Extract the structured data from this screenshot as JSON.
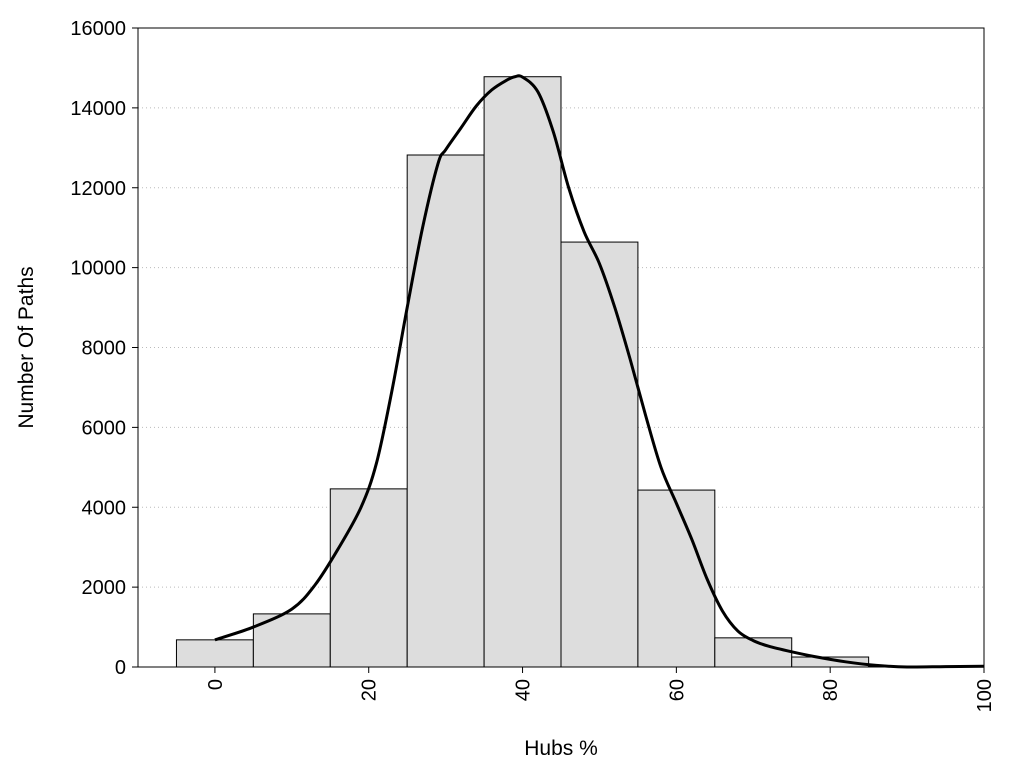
{
  "chart_data": {
    "type": "bar",
    "xlabel": "Hubs %",
    "ylabel": "Number Of Paths",
    "xlim": [
      -10,
      100
    ],
    "ylim": [
      0,
      16000
    ],
    "x_ticks": [
      "0",
      "20",
      "40",
      "60",
      "80",
      "100"
    ],
    "y_ticks": [
      "0",
      "2000",
      "4000",
      "6000",
      "8000",
      "10000",
      "12000",
      "14000",
      "16000"
    ],
    "grid": "horizontal dotted",
    "bar_color": "#dddddd",
    "bins": [
      {
        "center": 0,
        "value": 680
      },
      {
        "center": 10,
        "value": 1330
      },
      {
        "center": 20,
        "value": 4460
      },
      {
        "center": 30,
        "value": 12820
      },
      {
        "center": 40,
        "value": 14780
      },
      {
        "center": 50,
        "value": 10640
      },
      {
        "center": 60,
        "value": 4430
      },
      {
        "center": 70,
        "value": 730
      },
      {
        "center": 80,
        "value": 250
      },
      {
        "center": 90,
        "value": 20
      },
      {
        "center": 100,
        "value": 5
      }
    ],
    "bin_width": 10,
    "curve": {
      "x": [
        0,
        5,
        10,
        13,
        16,
        19,
        21,
        23,
        25,
        27,
        29,
        30,
        32,
        34,
        36,
        38,
        39,
        40,
        42,
        44,
        46,
        48,
        50,
        52,
        54,
        56,
        58,
        60,
        62,
        64,
        66,
        68,
        70,
        72,
        75,
        78,
        82,
        86,
        90,
        95,
        100
      ],
      "y": [
        680,
        1000,
        1450,
        2050,
        2950,
        4000,
        5100,
        6900,
        9000,
        11000,
        12600,
        12950,
        13500,
        14050,
        14450,
        14700,
        14780,
        14770,
        14400,
        13400,
        12000,
        10900,
        10100,
        9000,
        7700,
        6300,
        5000,
        4100,
        3200,
        2200,
        1400,
        900,
        660,
        520,
        380,
        260,
        130,
        40,
        0,
        10,
        20
      ]
    }
  }
}
